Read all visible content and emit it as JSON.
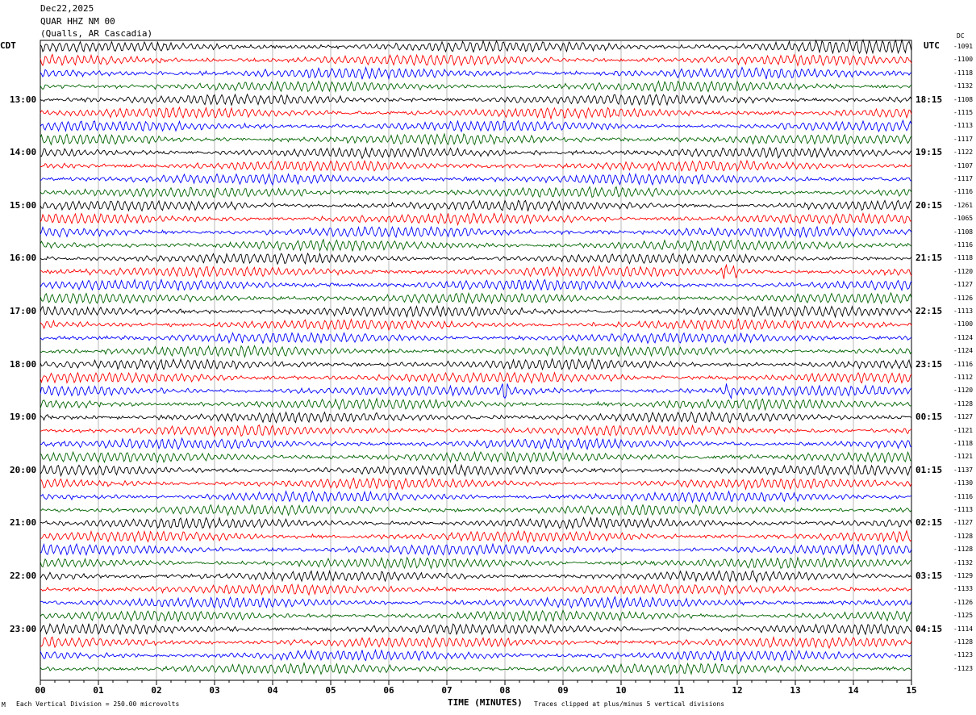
{
  "header": {
    "date": "Dec22,2025",
    "station": "QUAR HHZ NM 00",
    "location": "(Qualls, AR Cascadia)"
  },
  "left_axis_label": "CDT",
  "right_axis_label": "UTC",
  "dc_label": "DC",
  "left_times": [
    "13:00",
    "14:00",
    "15:00",
    "16:00",
    "17:00",
    "18:00",
    "19:00",
    "20:00",
    "21:00",
    "22:00",
    "23:00"
  ],
  "right_times": [
    "18:15",
    "19:15",
    "20:15",
    "21:15",
    "22:15",
    "23:15",
    "00:15",
    "01:15",
    "02:15",
    "03:15",
    "04:15"
  ],
  "footer": {
    "scale_note": "Each Vertical Division =  250.00 microvolts",
    "xlabel": "TIME (MINUTES)",
    "clip_note": "Traces clipped at plus/minus 5 vertical divisions"
  },
  "chart_data": {
    "type": "line",
    "subtype": "helicorder",
    "xlabel": "TIME (MINUTES)",
    "xlim": [
      0,
      15
    ],
    "x_ticks": [
      "00",
      "01",
      "02",
      "03",
      "04",
      "05",
      "06",
      "07",
      "08",
      "09",
      "10",
      "11",
      "12",
      "13",
      "14",
      "15"
    ],
    "trace_colors": [
      "#000000",
      "#ff0000",
      "#0000ff",
      "#006400"
    ],
    "trace_count": 48,
    "dc_offsets": [
      "-1091",
      "-1100",
      "-1118",
      "-1132",
      "-1108",
      "-1115",
      "-1113",
      "-1117",
      "-1122",
      "-1107",
      "-1117",
      "-1116",
      "-1261",
      "-1065",
      "-1108",
      "-1116",
      "-1118",
      "-1120",
      "-1127",
      "-1126",
      "-1113",
      "-1100",
      "-1124",
      "-1124",
      "-1116",
      "-1112",
      "-1120",
      "-1128",
      "-1127",
      "-1121",
      "-1118",
      "-1121",
      "-1137",
      "-1130",
      "-1116",
      "-1113",
      "-1127",
      "-1128",
      "-1128",
      "-1132",
      "-1129",
      "-1133",
      "-1126",
      "-1125",
      "-1114",
      "-1128",
      "-1123",
      "-1123"
    ]
  }
}
